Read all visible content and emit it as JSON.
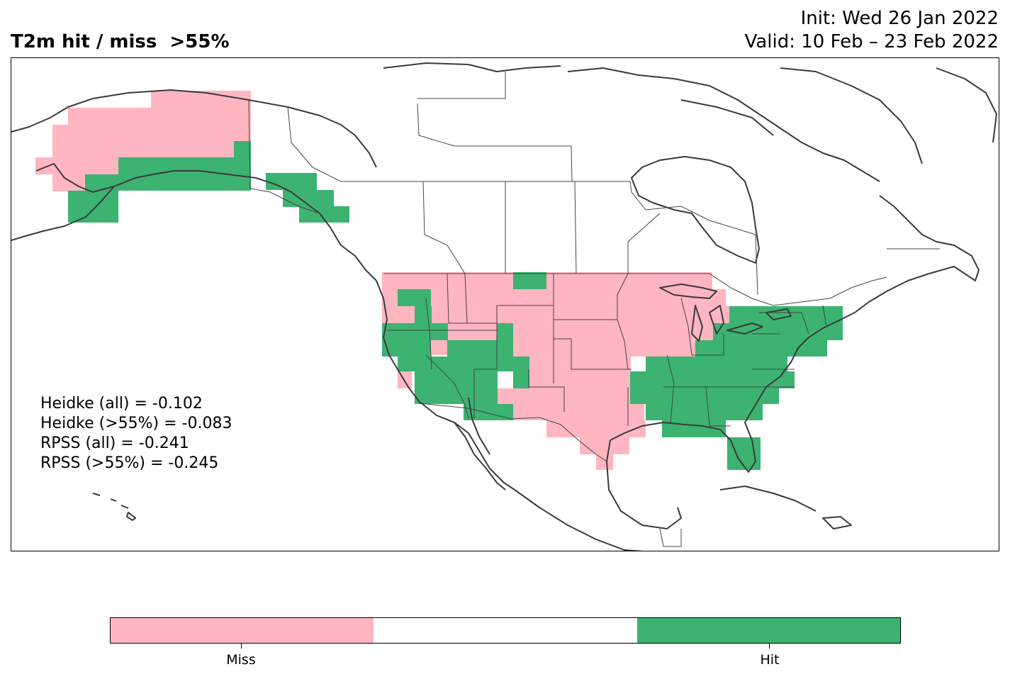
{
  "header": {
    "title": "T2m hit / miss  >55%",
    "init": "Init: Wed 26 Jan 2022",
    "valid": "Valid: 10 Feb – 23 Feb 2022"
  },
  "scores": {
    "heidke_all": "Heidke (all) = -0.102",
    "heidke_55": "Heidke (>55%) = -0.083",
    "rpss_all": "RPSS (all) = -0.241",
    "rpss_55": "RPSS (>55%) = -0.245"
  },
  "colorbar": {
    "miss_label": "Miss",
    "hit_label": "Hit",
    "colors": {
      "miss": "#ffb6c1",
      "none": "#ffffff",
      "hit": "#3cb371"
    }
  },
  "map": {
    "region": "North America",
    "cell_categories": [
      "miss",
      "hit"
    ]
  }
}
